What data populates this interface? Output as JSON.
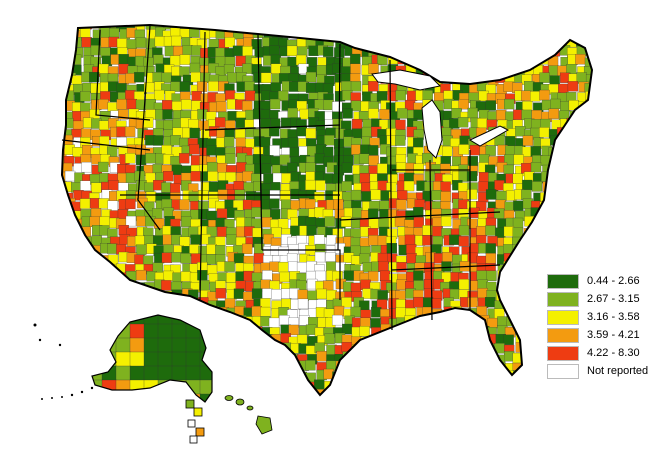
{
  "legend": [
    {
      "label": "0.44 - 2.66",
      "color": "#1e6b0c"
    },
    {
      "label": "2.67 - 3.15",
      "color": "#7fb21f"
    },
    {
      "label": "3.16 - 3.58",
      "color": "#f4f000"
    },
    {
      "label": "3.59 - 4.21",
      "color": "#f39b10"
    },
    {
      "label": "4.22 - 8.30",
      "color": "#ee3c12"
    },
    {
      "label": "Not reported",
      "color": "#ffffff"
    }
  ],
  "map": {
    "background": "#ffffff",
    "border_color": "#000000",
    "regions": [
      "contiguous-us",
      "alaska",
      "hawaii"
    ]
  }
}
